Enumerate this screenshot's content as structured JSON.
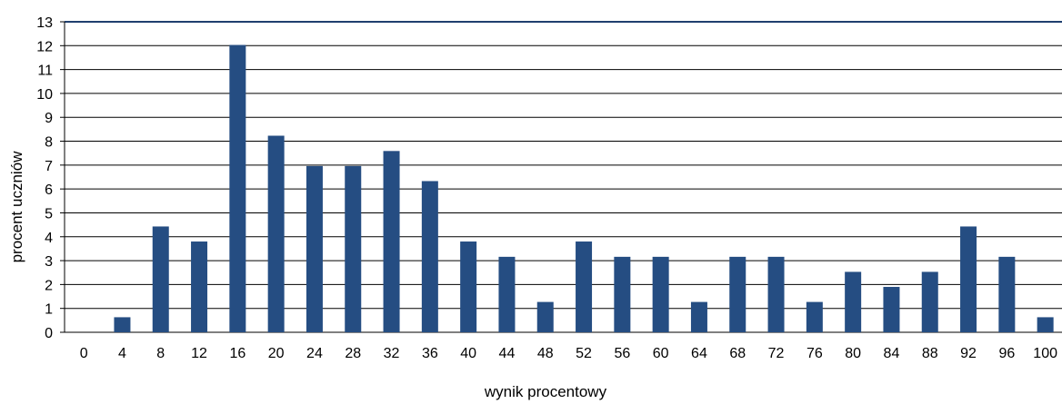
{
  "chart_data": {
    "type": "bar",
    "title": "",
    "xlabel": "wynik procentowy",
    "ylabel": "procent uczniów",
    "ylim": [
      0,
      13
    ],
    "yticks": [
      "0",
      "1",
      "2",
      "3",
      "4",
      "5",
      "6",
      "7",
      "8",
      "9",
      "10",
      "11",
      "12",
      "13"
    ],
    "categories": [
      "0",
      "4",
      "8",
      "12",
      "16",
      "20",
      "24",
      "28",
      "32",
      "36",
      "40",
      "44",
      "48",
      "52",
      "56",
      "60",
      "64",
      "68",
      "72",
      "76",
      "80",
      "84",
      "88",
      "92",
      "96",
      "100"
    ],
    "values": [
      0,
      0.63,
      4.43,
      3.8,
      12.03,
      8.23,
      6.96,
      6.96,
      7.59,
      6.33,
      3.8,
      3.16,
      1.27,
      3.8,
      3.16,
      3.16,
      1.27,
      3.16,
      3.16,
      1.27,
      2.53,
      1.9,
      2.53,
      4.43,
      3.16,
      0.63
    ],
    "colors": {
      "bar": "#254D82",
      "grid": "#000000",
      "axis": "#000000"
    },
    "grid": true,
    "legend": "none"
  }
}
